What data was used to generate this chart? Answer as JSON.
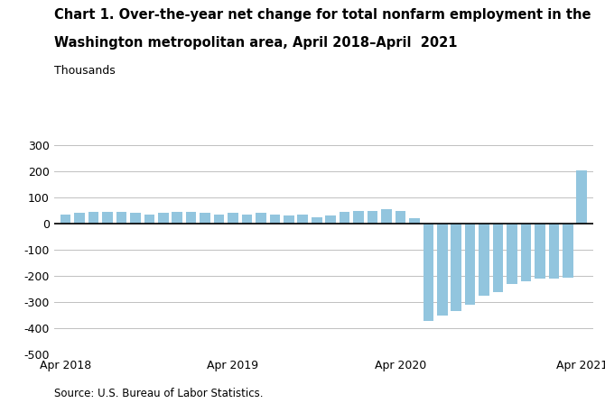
{
  "title_line1": "Chart 1. Over-the-year net change for total nonfarm employment in the",
  "title_line2": "Washington metropolitan area, April 2018–April  2021",
  "ylabel": "Thousands",
  "source": "Source: U.S. Bureau of Labor Statistics.",
  "bar_color": "#92c5de",
  "ylim": [
    -500,
    300
  ],
  "yticks": [
    -500,
    -400,
    -300,
    -200,
    -100,
    0,
    100,
    200,
    300
  ],
  "xtick_labels": [
    "Apr 2018",
    "Apr 2019",
    "Apr 2020",
    "Apr 2021"
  ],
  "values": [
    35,
    40,
    45,
    45,
    45,
    40,
    35,
    40,
    45,
    45,
    40,
    35,
    40,
    35,
    40,
    35,
    30,
    35,
    25,
    30,
    45,
    50,
    50,
    55,
    50,
    20,
    -370,
    -350,
    -335,
    -310,
    -275,
    -260,
    -230,
    -220,
    -210,
    -210,
    -205,
    205
  ],
  "x_positions": [
    0,
    1,
    2,
    3,
    4,
    5,
    6,
    7,
    8,
    9,
    10,
    11,
    12,
    13,
    14,
    15,
    16,
    17,
    18,
    19,
    20,
    21,
    22,
    23,
    24,
    25,
    26,
    27,
    28,
    29,
    30,
    31,
    32,
    33,
    34,
    35,
    36,
    37
  ],
  "xtick_positions": [
    0,
    12,
    24,
    37
  ],
  "zero_line_color": "#000000",
  "grid_color": "#c0c0c0",
  "background_color": "#ffffff",
  "title_fontsize": 10.5,
  "ylabel_fontsize": 9,
  "axis_fontsize": 9,
  "source_fontsize": 8.5
}
